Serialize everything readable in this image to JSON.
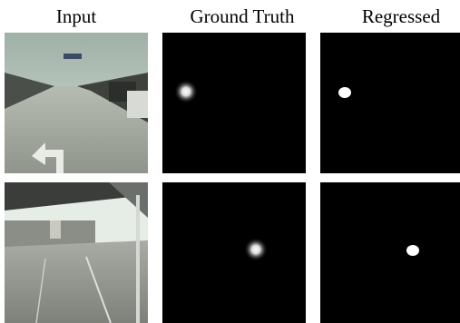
{
  "header": {
    "columns": [
      "Input",
      "Ground Truth",
      "Regressed"
    ]
  }
}
